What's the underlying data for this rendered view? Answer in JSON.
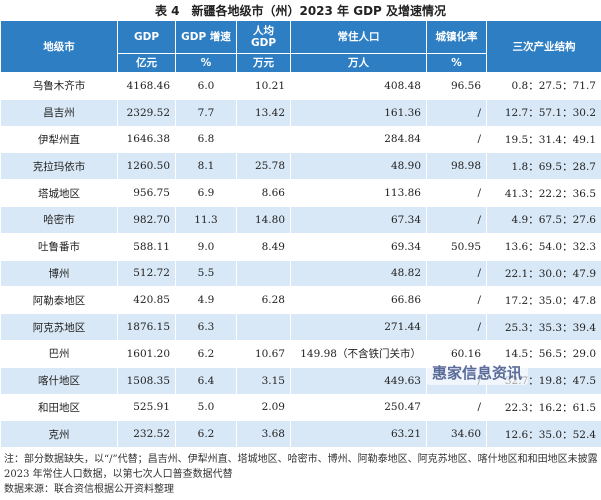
{
  "title": "表 4　新疆各地级市（州）2023 年 GDP 及增速情况",
  "table": {
    "header": [
      "地级市",
      "GDP",
      "GDP 增速",
      "人均 GDP",
      "常住人口",
      "城镇化率",
      "三次产业结构"
    ],
    "units": [
      null,
      "亿元",
      "%",
      "万元",
      "万人",
      "%",
      null
    ],
    "rows": [
      [
        "乌鲁木齐市",
        "4168.46",
        "6.0",
        "10.21",
        "408.48",
        "96.56",
        "0.8：27.5：71.7"
      ],
      [
        "昌吉州",
        "2329.52",
        "7.7",
        "13.42",
        "161.36",
        "/",
        "12.7：57.1：30.2"
      ],
      [
        "伊犁州直",
        "1646.38",
        "6.8",
        null,
        "284.84",
        "/",
        "19.5：31.4：49.1"
      ],
      [
        "克拉玛依市",
        "1260.50",
        "8.1",
        "25.78",
        "48.90",
        "98.98",
        "1.8：69.5：28.7"
      ],
      [
        "塔城地区",
        "956.75",
        "6.9",
        "8.66",
        "113.86",
        "/",
        "41.3：22.2：36.5"
      ],
      [
        "哈密市",
        "982.70",
        "11.3",
        "14.80",
        "67.34",
        "/",
        "4.9：67.5：27.6"
      ],
      [
        "吐鲁番市",
        "588.11",
        "9.0",
        "8.49",
        "69.34",
        "50.95",
        "13.6：54.0：32.3"
      ],
      [
        "博州",
        "512.72",
        "5.5",
        null,
        "48.82",
        "/",
        "22.1：30.0：47.9"
      ],
      [
        "阿勒泰地区",
        "420.85",
        "4.9",
        "6.28",
        "66.86",
        "/",
        "17.2：35.0：47.8"
      ],
      [
        "阿克苏地区",
        "1876.15",
        "6.3",
        null,
        "271.44",
        "/",
        "25.3：35.3：39.4"
      ],
      [
        "巴州",
        "1601.20",
        "6.2",
        "10.67",
        "149.98（不含铁门关市）",
        "60.16",
        "14.5：56.5：29.0"
      ],
      [
        "喀什地区",
        "1508.35",
        "6.4",
        "3.15",
        "449.63",
        "/",
        "32.7：19.8：47.5"
      ],
      [
        "和田地区",
        "525.91",
        "5.0",
        "2.09",
        "250.47",
        "/",
        "22.3：16.2：61.5"
      ],
      [
        "克州",
        "232.52",
        "6.2",
        "3.68",
        "63.21",
        "34.60",
        "12.6：35.0：52.4"
      ]
    ]
  },
  "notes": [
    "注：部分数据缺失，以“/”代替；昌吉州、伊犁州直、塔城地区、哈密市、博州、阿勒泰地区、阿克苏地区、喀什地区和和田地区未披露 2023 年常住人口数据，以第七次人口普查数据代替",
    "数据来源：联合资信根据公开资料整理"
  ],
  "watermark": "惠家信息资讯"
}
